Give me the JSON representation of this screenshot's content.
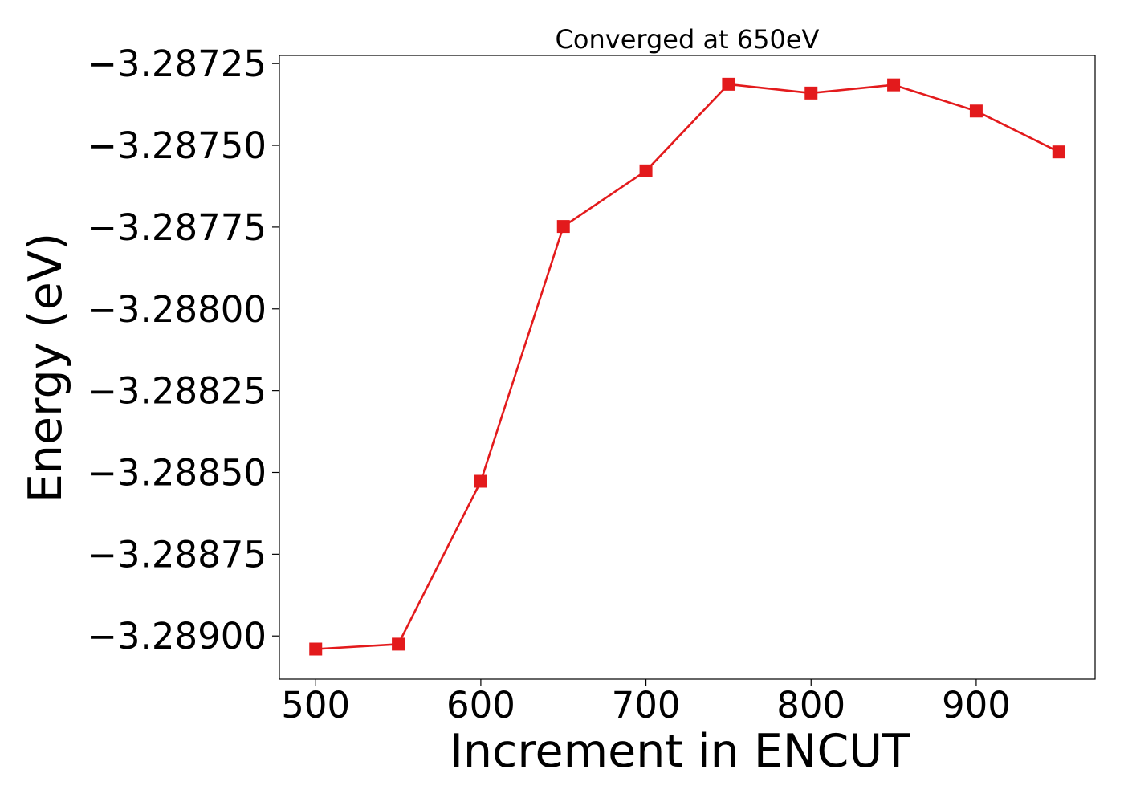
{
  "chart_data": {
    "type": "line",
    "title": "Converged at 650eV",
    "xlabel": "Increment in ENCUT",
    "ylabel": "Energy (eV)",
    "x": [
      500,
      550,
      600,
      650,
      700,
      750,
      800,
      850,
      900,
      950
    ],
    "series": [
      {
        "values": [
          -3.28904,
          -3.289025,
          -3.288527,
          -3.287748,
          -3.287578,
          -3.287313,
          -3.28734,
          -3.287315,
          -3.287395,
          -3.28752
        ],
        "color": "#e31a1c",
        "marker": "square"
      }
    ],
    "xlim": [
      478,
      972
    ],
    "ylim": [
      -3.289132,
      -3.287225
    ],
    "xticks": [
      500,
      600,
      700,
      800,
      900
    ],
    "xtick_labels": [
      "500",
      "600",
      "700",
      "800",
      "900"
    ],
    "yticks": [
      -3.28725,
      -3.2875,
      -3.28775,
      -3.288,
      -3.28825,
      -3.2885,
      -3.28875,
      -3.289
    ],
    "ytick_labels": [
      "−3.28725",
      "−3.28750",
      "−3.28775",
      "−3.28800",
      "−3.28825",
      "−3.28850",
      "−3.28875",
      "−3.28900"
    ],
    "grid": false,
    "legend": false
  }
}
